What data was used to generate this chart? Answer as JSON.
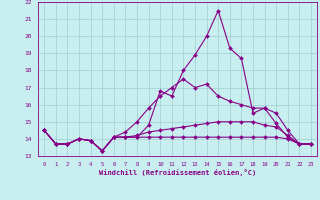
{
  "title": "",
  "xlabel": "Windchill (Refroidissement éolien,°C)",
  "bg_color": "#c8eef0",
  "line_color": "#880088",
  "grid_color": "#aadddd",
  "ylim": [
    13,
    22
  ],
  "xlim": [
    -0.5,
    23.5
  ],
  "yticks": [
    13,
    14,
    15,
    16,
    17,
    18,
    19,
    20,
    21,
    22
  ],
  "xticks": [
    0,
    1,
    2,
    3,
    4,
    5,
    6,
    7,
    8,
    9,
    10,
    11,
    12,
    13,
    14,
    15,
    16,
    17,
    18,
    19,
    20,
    21,
    22,
    23
  ],
  "series": [
    [
      14.5,
      13.7,
      13.7,
      14.0,
      13.9,
      13.3,
      14.1,
      14.1,
      14.1,
      14.8,
      16.8,
      16.5,
      18.0,
      18.9,
      20.0,
      21.5,
      19.3,
      18.7,
      15.5,
      15.8,
      14.9,
      14.1,
      13.7,
      13.7
    ],
    [
      14.5,
      13.7,
      13.7,
      14.0,
      13.9,
      13.3,
      14.1,
      14.4,
      15.0,
      15.8,
      16.5,
      17.0,
      17.5,
      17.0,
      17.2,
      16.5,
      16.2,
      16.0,
      15.8,
      15.8,
      15.5,
      14.5,
      13.7,
      13.7
    ],
    [
      14.5,
      13.7,
      13.7,
      14.0,
      13.9,
      13.3,
      14.1,
      14.1,
      14.2,
      14.4,
      14.5,
      14.6,
      14.7,
      14.8,
      14.9,
      15.0,
      15.0,
      15.0,
      15.0,
      14.8,
      14.7,
      14.2,
      13.7,
      13.7
    ],
    [
      14.5,
      13.7,
      13.7,
      14.0,
      13.9,
      13.3,
      14.1,
      14.1,
      14.1,
      14.1,
      14.1,
      14.1,
      14.1,
      14.1,
      14.1,
      14.1,
      14.1,
      14.1,
      14.1,
      14.1,
      14.1,
      14.0,
      13.7,
      13.7
    ]
  ]
}
